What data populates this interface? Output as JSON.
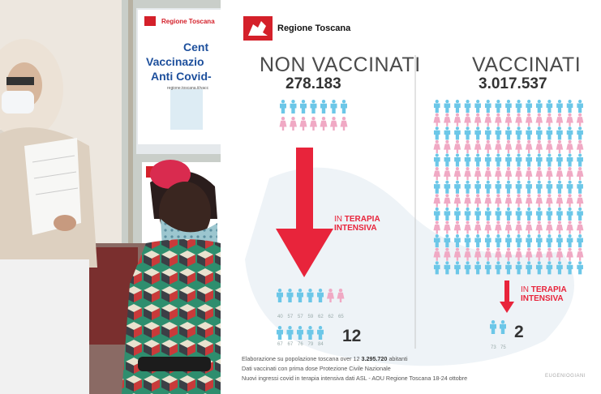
{
  "sign": {
    "brand": "Regione Toscana",
    "line1": "Cent",
    "line2": "Vaccinazio",
    "line3": "Anti Covid-",
    "url": "regione.toscana.it/vacc"
  },
  "infographic": {
    "brand": "Regione Toscana",
    "non_vaccinati": {
      "title": "NON VACCINATI",
      "count": "278.183",
      "icu_prefix": "IN",
      "icu_label_1": "TERAPIA",
      "icu_label_2": "INTENSIVA",
      "icu_count": "12",
      "ages_row1": [
        "40",
        "57",
        "57",
        "59",
        "62",
        "62",
        "65"
      ],
      "ages_row2": [
        "67",
        "67",
        "76",
        "79",
        "84"
      ]
    },
    "vaccinati": {
      "title": "VACCINATI",
      "count": "3.017.537",
      "icu_prefix": "IN",
      "icu_label_1": "TERAPIA",
      "icu_label_2": "INTENSIVA",
      "icu_count": "2",
      "ages": [
        "73",
        "75"
      ]
    },
    "footer": {
      "line1_prefix": "Elaborazione su popolazione toscana over 12",
      "line1_bold": "3.295.720",
      "line1_suffix": "abitanti",
      "line2": "Dati vaccinati con prima dose Protezione Civile Nazionale",
      "line3": "Nuovi ingressi covid in terapia intensiva dati ASL - AOU Regione Toscana 18-24 ottobre"
    },
    "credit": "EUGENIOGIANI"
  },
  "colors": {
    "male": "#6cc7e8",
    "female": "#f0a9c4",
    "red": "#e8243b",
    "brand_red": "#d4202a"
  }
}
